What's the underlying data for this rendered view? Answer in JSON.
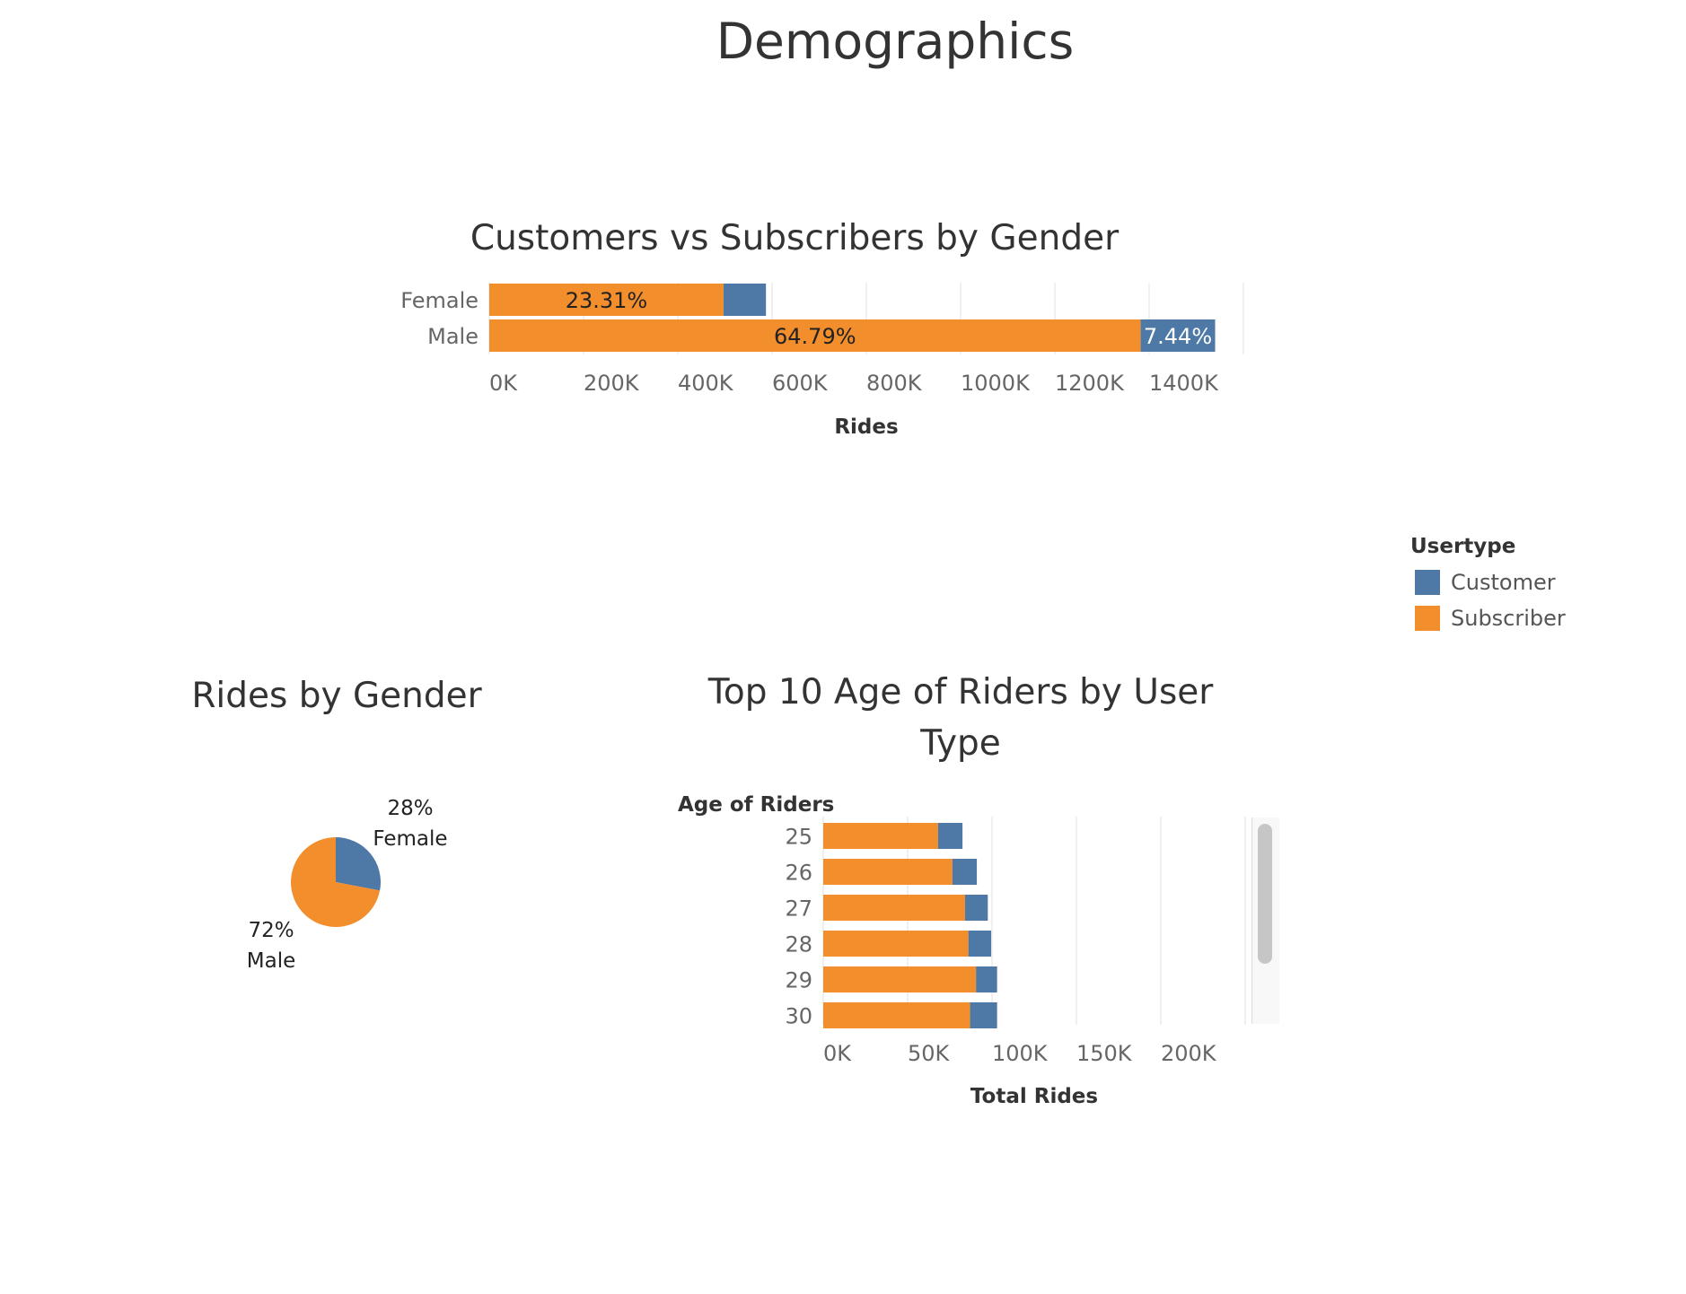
{
  "page": {
    "title": "Demographics"
  },
  "colors": {
    "customer": "#4e79a7",
    "subscriber": "#f28e2b",
    "grid": "#ebebeb",
    "axis_text": "#666666",
    "title_text": "#333333"
  },
  "legend": {
    "title": "Usertype",
    "items": [
      {
        "label": "Customer",
        "color": "#4e79a7"
      },
      {
        "label": "Subscriber",
        "color": "#f28e2b"
      }
    ]
  },
  "chart_data": [
    {
      "id": "gender_usertype",
      "type": "bar",
      "orientation": "horizontal",
      "stacked": true,
      "title": "Customers vs Subscribers by Gender",
      "xlabel": "Rides",
      "ylabel": "",
      "categories": [
        "Female",
        "Male"
      ],
      "series": [
        {
          "name": "Subscriber",
          "values": [
            497000,
            1382000
          ],
          "labels": [
            "23.31%",
            "64.79%"
          ]
        },
        {
          "name": "Customer",
          "values": [
            90000,
            158000
          ],
          "labels": [
            "",
            "7.44%"
          ]
        }
      ],
      "xlim": [
        0,
        1600000
      ],
      "xticks": [
        0,
        200000,
        400000,
        600000,
        800000,
        1000000,
        1200000,
        1400000
      ],
      "xtick_labels": [
        "0K",
        "200K",
        "400K",
        "600K",
        "800K",
        "1000K",
        "1200K",
        "1400K"
      ],
      "grid": true
    },
    {
      "id": "rides_by_gender",
      "type": "pie",
      "title": "Rides by Gender",
      "slices": [
        {
          "label": "Female",
          "value": 28,
          "pct_label": "28%",
          "color": "#4e79a7"
        },
        {
          "label": "Male",
          "value": 72,
          "pct_label": "72%",
          "color": "#f28e2b"
        }
      ]
    },
    {
      "id": "age_usertype",
      "type": "bar",
      "orientation": "horizontal",
      "stacked": true,
      "title": "Top 10 Age of Riders by User Type",
      "xlabel": "Total Rides",
      "ylabel": "Age of Riders",
      "categories": [
        "25",
        "26",
        "27",
        "28",
        "29",
        "30"
      ],
      "series": [
        {
          "name": "Subscriber",
          "values": [
            68000,
            76500,
            84000,
            86000,
            90500,
            87000
          ]
        },
        {
          "name": "Customer",
          "values": [
            14500,
            14500,
            13500,
            13500,
            12500,
            16000
          ]
        }
      ],
      "xlim": [
        0,
        250000
      ],
      "xticks": [
        0,
        50000,
        100000,
        150000,
        200000
      ],
      "xtick_labels": [
        "0K",
        "50K",
        "100K",
        "150K",
        "200K"
      ],
      "grid": true
    }
  ]
}
